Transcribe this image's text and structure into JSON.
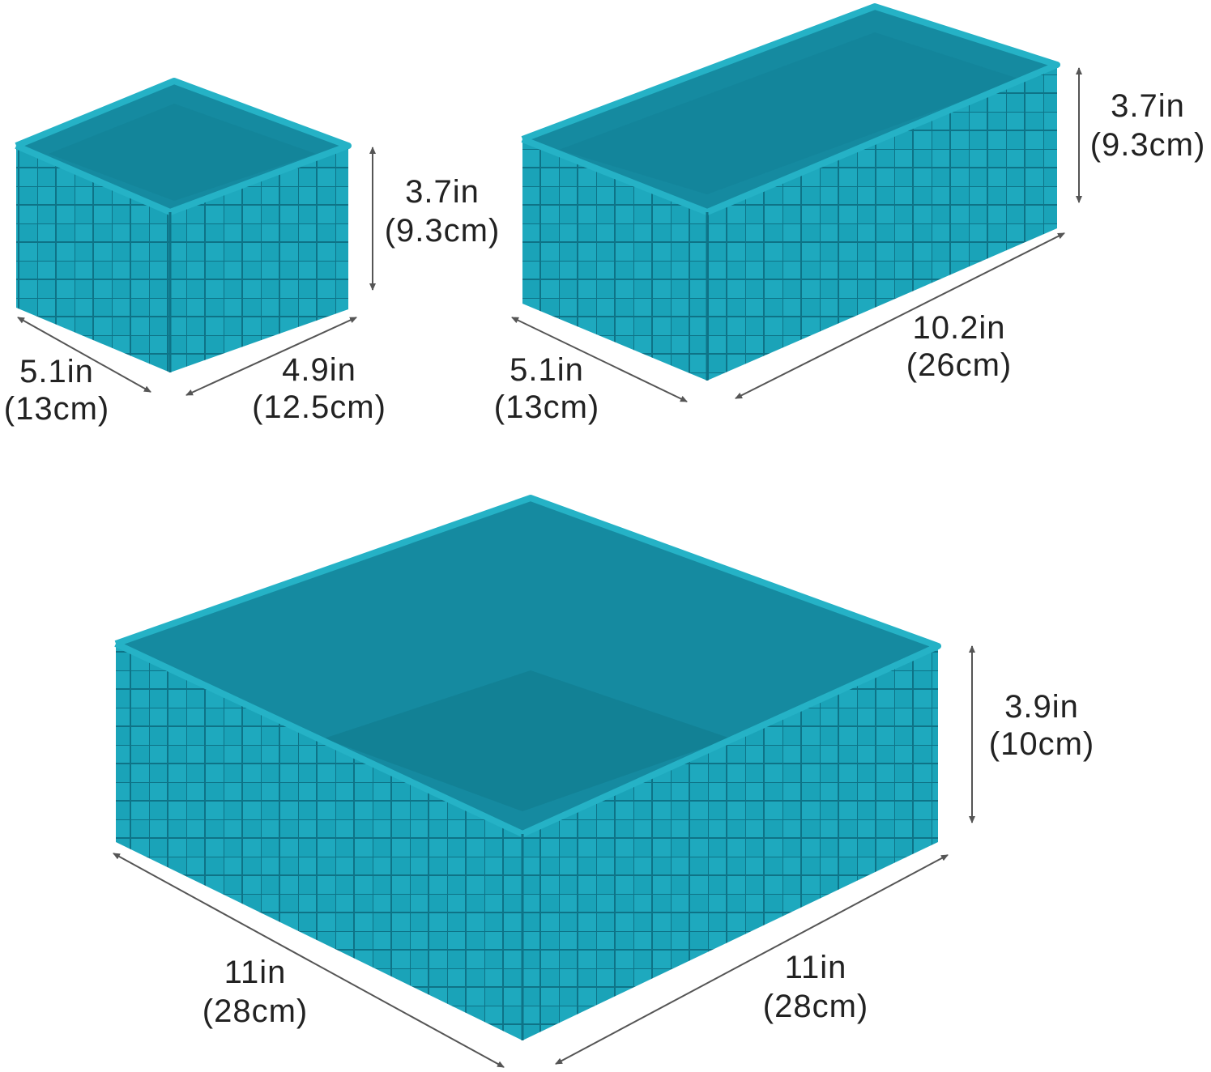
{
  "colors": {
    "basket": "#1aa3b8",
    "basket_shadow": "#127f94",
    "text": "#222222",
    "arrow": "#555555",
    "background": "#ffffff"
  },
  "small_basket": {
    "height": {
      "in": "3.7in",
      "cm": "(9.3cm)"
    },
    "depth": {
      "in": "5.1in",
      "cm": "(13cm)"
    },
    "width": {
      "in": "4.9in",
      "cm": "(12.5cm)"
    }
  },
  "medium_basket": {
    "height": {
      "in": "3.7in",
      "cm": "(9.3cm)"
    },
    "depth": {
      "in": "5.1in",
      "cm": "(13cm)"
    },
    "width": {
      "in": "10.2in",
      "cm": "(26cm)"
    }
  },
  "large_basket": {
    "height": {
      "in": "3.9in",
      "cm": "(10cm)"
    },
    "depth": {
      "in": "11in",
      "cm": "(28cm)"
    },
    "width": {
      "in": "11in",
      "cm": "(28cm)"
    }
  }
}
